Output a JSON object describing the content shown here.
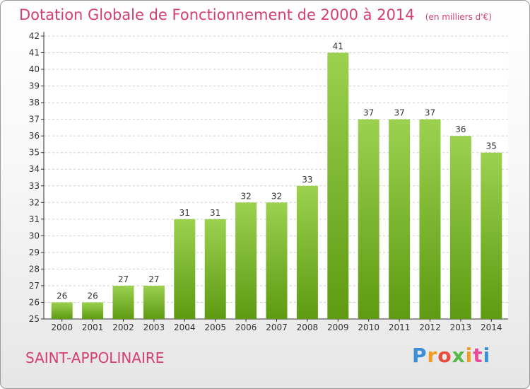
{
  "header": {
    "title": "Dotation Globale de Fonctionnement de 2000 à 2014",
    "subtitle": "(en milliers d'€)"
  },
  "footer": {
    "town": "SAINT-APPOLINAIRE",
    "logo_text": "Proxiti"
  },
  "colors": {
    "title": "#d53f6e",
    "bar_top": "#9bd14f",
    "bar_bottom": "#5e9a12",
    "grid": "#cfcfcf",
    "axis": "#333333"
  },
  "chart_data": {
    "type": "bar",
    "categories": [
      "2000",
      "2001",
      "2002",
      "2003",
      "2004",
      "2005",
      "2006",
      "2007",
      "2008",
      "2009",
      "2010",
      "2011",
      "2012",
      "2013",
      "2014"
    ],
    "values": [
      26,
      26,
      27,
      27,
      31,
      31,
      32,
      32,
      33,
      41,
      37,
      37,
      37,
      36,
      35
    ],
    "data_labels": [
      "26",
      "26",
      "27",
      "27",
      "31",
      "31",
      "32",
      "32",
      "33",
      "41",
      "37",
      "37",
      "37",
      "36",
      "35"
    ],
    "ylim": [
      25,
      42
    ],
    "yticks": [
      "25",
      "26",
      "27",
      "28",
      "29",
      "30",
      "31",
      "32",
      "33",
      "34",
      "35",
      "36",
      "37",
      "38",
      "39",
      "40",
      "41",
      "42"
    ],
    "grid": true,
    "legend": "none"
  }
}
